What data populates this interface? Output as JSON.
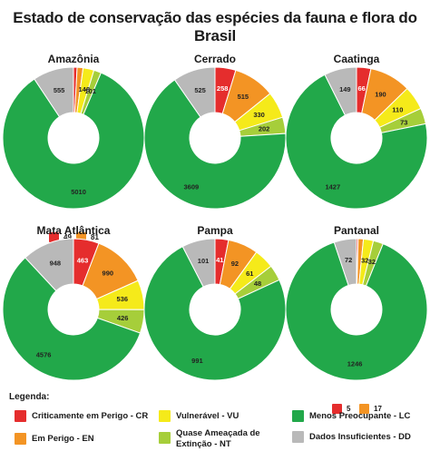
{
  "title": "Estado de conservação das espécies da fauna e flora do Brasil",
  "colors": {
    "CR": "#e52d2d",
    "EN": "#f39424",
    "VU": "#f5ea1a",
    "NT": "#a6ce3a",
    "LC": "#22a84a",
    "DD": "#b9b9b9"
  },
  "legend": {
    "title": "Legenda:",
    "items": [
      {
        "key": "CR",
        "label": "Criticamente em Perigo - CR"
      },
      {
        "key": "EN",
        "label": "Em Perigo - EN"
      },
      {
        "key": "VU",
        "label": "Vulnerável - VU"
      },
      {
        "key": "NT",
        "label": "Quase Ameaçada de Extinção - NT"
      },
      {
        "key": "LC",
        "label": "Menos Preocupante - LC"
      },
      {
        "key": "DD",
        "label": "Dados Insuficientes - DD"
      }
    ]
  },
  "chart_data": [
    {
      "type": "pie",
      "title": "Amazônia",
      "categories": [
        "CR",
        "EN",
        "VU",
        "NT",
        "LC",
        "DD"
      ],
      "values": [
        49,
        81,
        148,
        101,
        5010,
        555
      ],
      "labels_inside": {
        "VU": "148",
        "NT": "101",
        "LC": "5010",
        "DD": "555"
      },
      "labels_outside": [
        {
          "key": "CR",
          "text": "49"
        },
        {
          "key": "EN",
          "text": "81"
        }
      ]
    },
    {
      "type": "pie",
      "title": "Cerrado",
      "categories": [
        "CR",
        "EN",
        "VU",
        "NT",
        "LC",
        "DD"
      ],
      "values": [
        258,
        515,
        330,
        202,
        3609,
        525
      ],
      "labels_inside": {
        "CR": "258",
        "EN": "515",
        "VU": "330",
        "NT": "202",
        "LC": "3609",
        "DD": "525"
      },
      "labels_outside": []
    },
    {
      "type": "pie",
      "title": "Caatinga",
      "categories": [
        "CR",
        "EN",
        "VU",
        "NT",
        "LC",
        "DD"
      ],
      "values": [
        66,
        190,
        110,
        73,
        1427,
        149
      ],
      "labels_inside": {
        "CR": "66",
        "EN": "190",
        "VU": "110",
        "NT": "73",
        "LC": "1427",
        "DD": "149"
      },
      "labels_outside": []
    },
    {
      "type": "pie",
      "title": "Mata Atlântica",
      "categories": [
        "CR",
        "EN",
        "VU",
        "NT",
        "LC",
        "DD"
      ],
      "values": [
        463,
        990,
        536,
        426,
        4576,
        948
      ],
      "labels_inside": {
        "CR": "463",
        "EN": "990",
        "VU": "536",
        "NT": "426",
        "LC": "4576",
        "DD": "948"
      },
      "labels_outside": []
    },
    {
      "type": "pie",
      "title": "Pampa",
      "categories": [
        "CR",
        "EN",
        "VU",
        "NT",
        "LC",
        "DD"
      ],
      "values": [
        41,
        92,
        61,
        48,
        991,
        101
      ],
      "labels_inside": {
        "CR": "41",
        "EN": "92",
        "VU": "61",
        "NT": "48",
        "LC": "991",
        "DD": "101"
      },
      "labels_outside": []
    },
    {
      "type": "pie",
      "title": "Pantanal",
      "categories": [
        "CR",
        "EN",
        "VU",
        "NT",
        "LC",
        "DD"
      ],
      "values": [
        5,
        17,
        32,
        32,
        1246,
        72
      ],
      "labels_inside": {
        "VU": "32",
        "NT": "32",
        "LC": "1246",
        "DD": "72"
      },
      "labels_outside": [
        {
          "key": "CR",
          "text": "5"
        },
        {
          "key": "EN",
          "text": "17"
        }
      ]
    }
  ]
}
